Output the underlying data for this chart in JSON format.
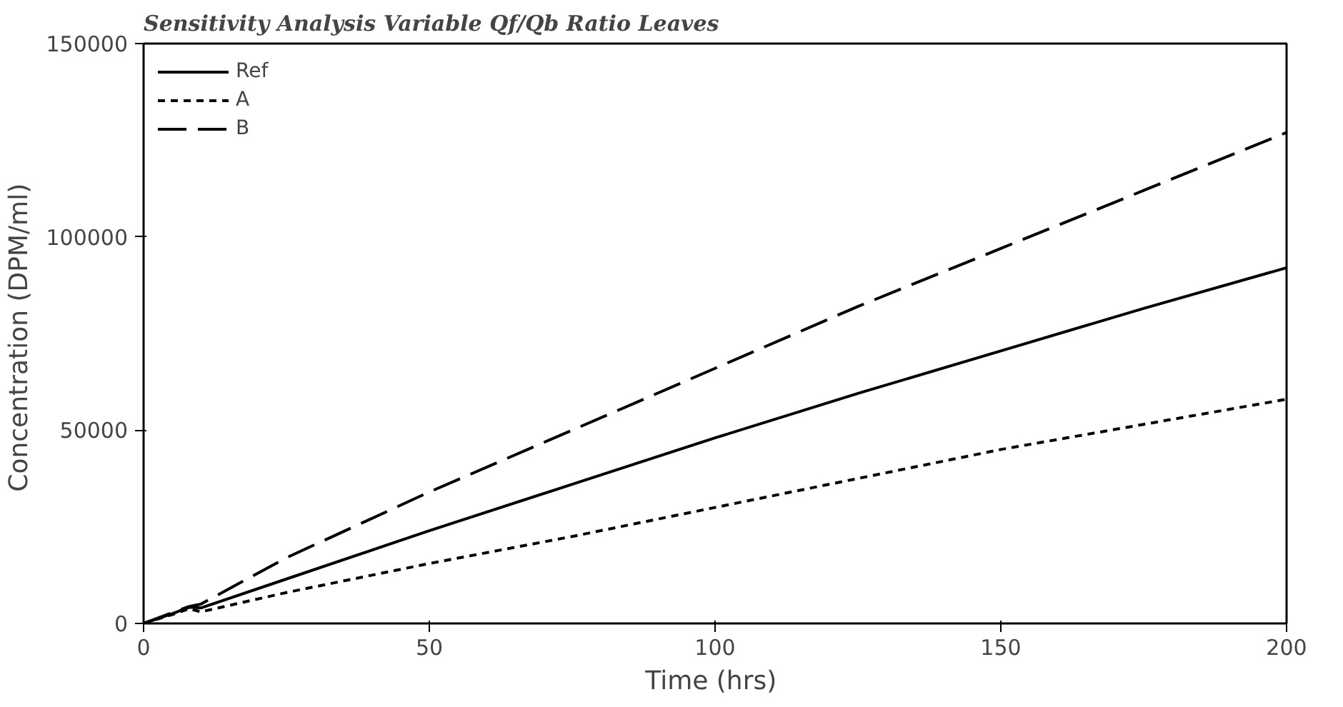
{
  "chart_data": {
    "type": "line",
    "title": "Sensitivity Analysis    Variable Qf/Qb Ratio    Leaves",
    "xlabel": "Time  (hrs)",
    "ylabel": "Concentration  (DPM/ml)",
    "xlim": [
      0,
      200
    ],
    "ylim": [
      0,
      150000
    ],
    "xticks": [
      0,
      50,
      100,
      150,
      200
    ],
    "yticks": [
      0,
      50000,
      100000,
      150000
    ],
    "grid": false,
    "legend": "top left",
    "marker": "none",
    "series": [
      {
        "name": "Ref",
        "color": "#000000",
        "line_style": "solid",
        "x": [
          0,
          5,
          8,
          10,
          25,
          50,
          75,
          100,
          125,
          150,
          175,
          200
        ],
        "values": [
          0,
          2500,
          4200,
          4000,
          11500,
          24000,
          36000,
          48000,
          59500,
          70500,
          81500,
          92000
        ]
      },
      {
        "name": "A",
        "color": "#000000",
        "line_style": "dashed",
        "x": [
          0,
          5,
          8,
          10,
          25,
          50,
          75,
          100,
          125,
          150,
          175,
          200
        ],
        "values": [
          0,
          2300,
          3800,
          3000,
          8000,
          15500,
          22500,
          30000,
          37500,
          45000,
          51500,
          58000
        ]
      },
      {
        "name": "B",
        "color": "#000000",
        "line_style": "dashed",
        "x": [
          0,
          5,
          8,
          10,
          25,
          50,
          75,
          100,
          125,
          150,
          175,
          200
        ],
        "values": [
          0,
          2800,
          4400,
          5000,
          17000,
          34000,
          50000,
          66000,
          82000,
          97000,
          112000,
          127000
        ]
      }
    ]
  }
}
